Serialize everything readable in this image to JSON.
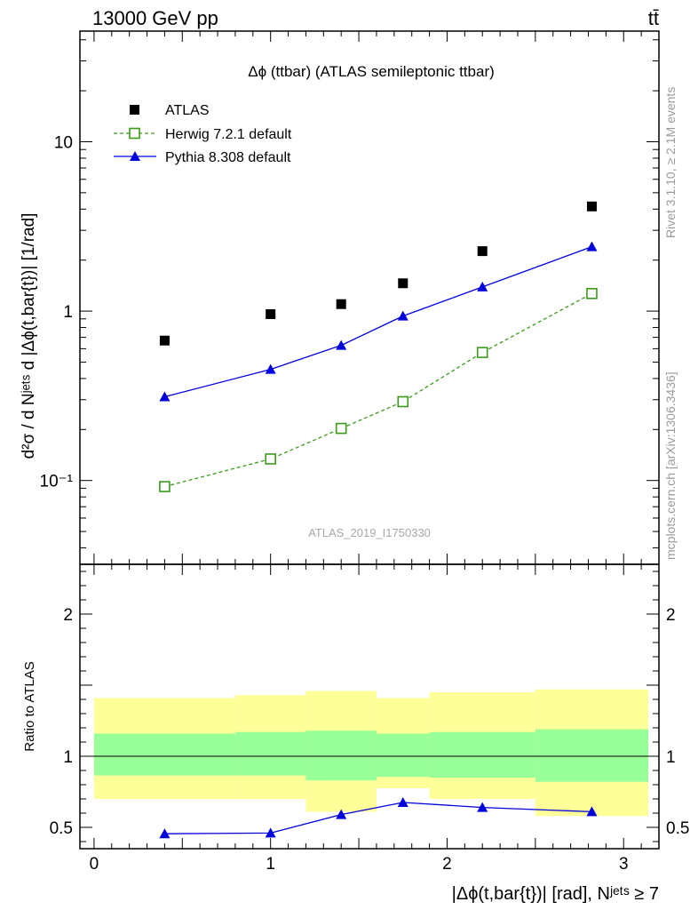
{
  "header": {
    "left": "13000 GeV pp",
    "right": "tt̄"
  },
  "side_labels": {
    "rivet": "Rivet 3.1.10, ≥ 2.1M events",
    "mcplots": "mcplots.cern.ch [arXiv:1306.3436]"
  },
  "chart_data": [
    {
      "type": "scatter",
      "title": "Δϕ (ttbar) (ATLAS semileptonic ttbar)",
      "watermark": "ATLAS_2019_I1750330",
      "ylabel": "d²σ / d Nʲᵉᵗˢ d |Δϕ(t,bar{t})| [1/rad]",
      "yscale": "log",
      "xlim": [
        -0.08,
        3.2
      ],
      "ylim": [
        0.032,
        45
      ],
      "yticks": [
        {
          "value": 0.1,
          "label": "10⁻¹"
        },
        {
          "value": 1,
          "label": "1"
        },
        {
          "value": 10,
          "label": "10"
        }
      ],
      "legend_position": "top-left",
      "legend": [
        "ATLAS",
        "Herwig 7.2.1 default",
        "Pythia 8.308 default"
      ],
      "series": [
        {
          "name": "ATLAS",
          "marker": "square-filled",
          "color": "#000000",
          "x": [
            0.4,
            1.0,
            1.4,
            1.75,
            2.2,
            2.82
          ],
          "y": [
            0.67,
            0.96,
            1.1,
            1.46,
            2.26,
            4.15
          ]
        },
        {
          "name": "Herwig 7.2.1 default",
          "marker": "square-open",
          "line": "dashed",
          "color": "#3a9a1a",
          "x": [
            0.4,
            1.0,
            1.4,
            1.75,
            2.2,
            2.82
          ],
          "y": [
            0.092,
            0.134,
            0.203,
            0.292,
            0.57,
            1.27
          ]
        },
        {
          "name": "Pythia 8.308 default",
          "marker": "triangle-filled",
          "line": "solid",
          "color": "#0000dd",
          "x": [
            0.4,
            1.0,
            1.4,
            1.75,
            2.2,
            2.82
          ],
          "y": [
            0.312,
            0.453,
            0.628,
            0.935,
            1.39,
            2.4
          ]
        }
      ]
    },
    {
      "type": "scatter",
      "ylabel": "Ratio to ATLAS",
      "xlabel": "|Δϕ(t,bar{t})| [rad], Nʲᵉᵗˢ ≥ 7",
      "xlim": [
        -0.08,
        3.2
      ],
      "ylim": [
        0.35,
        2.35
      ],
      "xticks": [
        0,
        1,
        2,
        3
      ],
      "yticks": [
        0.5,
        1,
        2
      ],
      "reference_line": 1,
      "bins": [
        {
          "x0": 0.0,
          "x1": 0.8,
          "yellow": [
            0.7,
            1.41
          ],
          "green": [
            0.865,
            1.16
          ]
        },
        {
          "x0": 0.8,
          "x1": 1.2,
          "yellow": [
            0.7,
            1.43
          ],
          "green": [
            0.865,
            1.17
          ]
        },
        {
          "x0": 1.2,
          "x1": 1.6,
          "yellow": [
            0.61,
            1.46
          ],
          "green": [
            0.83,
            1.18
          ]
        },
        {
          "x0": 1.6,
          "x1": 1.9,
          "yellow": [
            0.775,
            1.41
          ],
          "green": [
            0.855,
            1.16
          ]
        },
        {
          "x0": 1.9,
          "x1": 2.5,
          "yellow": [
            0.7,
            1.45
          ],
          "green": [
            0.85,
            1.17
          ]
        },
        {
          "x0": 2.5,
          "x1": 3.14,
          "yellow": [
            0.58,
            1.47
          ],
          "green": [
            0.82,
            1.19
          ]
        }
      ],
      "series": [
        {
          "name": "Pythia 8.308 default",
          "marker": "triangle-filled",
          "line": "solid",
          "color": "#0000dd",
          "x": [
            0.4,
            1.0,
            1.4,
            1.75,
            2.2,
            2.82
          ],
          "y": [
            0.455,
            0.46,
            0.59,
            0.675,
            0.64,
            0.61
          ],
          "err": [
            0.025,
            0.025,
            0.02,
            0.02,
            0.015,
            0.012
          ]
        }
      ]
    }
  ]
}
